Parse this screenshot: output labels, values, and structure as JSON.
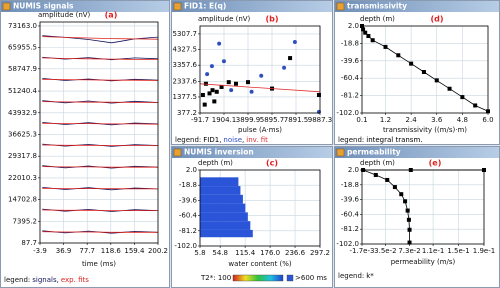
{
  "chart_data": [
    {
      "type": "line",
      "window_title": "NUMIS signals",
      "panel_label": "(a)",
      "y_label": "amplitude (nV)",
      "x_label": "time (ms)",
      "legend_title": "legend:",
      "legend_separator": ",",
      "x": [
        0,
        40,
        80,
        120,
        160,
        200
      ],
      "xlim": [
        -3.9,
        200.2
      ],
      "xticks": [
        -3.9,
        36.9,
        77.7,
        118.6,
        159.4,
        200.2
      ],
      "ylim": [
        87.7,
        74500
      ],
      "yticks": [
        87.7,
        7395.2,
        14702.8,
        22010.3,
        29317.8,
        36625.3,
        43932.9,
        51240.4,
        58747.9,
        65955.5,
        {
          "value": 73163,
          "label": "73163.0"
        }
      ],
      "grid": true,
      "series": [
        {
          "name": "signals",
          "color": "#14145a",
          "traces": [
            [
              69900,
              69300,
              68600,
              67500,
              68800,
              69400
            ],
            [
              62600,
              62000,
              62500,
              61800,
              62400,
              62100
            ],
            [
              55500,
              54800,
              55300,
              54700,
              55200,
              54900
            ],
            [
              48000,
              47300,
              47900,
              47200,
              47800,
              47400
            ],
            [
              40700,
              40000,
              40600,
              39900,
              40500,
              40200
            ],
            [
              33400,
              32700,
              33300,
              32600,
              33200,
              32900
            ],
            [
              26100,
              25400,
              26000,
              25300,
              25900,
              25600
            ],
            [
              18800,
              18100,
              18700,
              18000,
              18600,
              18300
            ],
            [
              11500,
              10800,
              11400,
              10700,
              11300,
              11000
            ],
            [
              4200,
              3500,
              4100,
              3400,
              4000,
              3700
            ]
          ]
        },
        {
          "name": "exp. fits",
          "color": "#e0201c",
          "traces": [
            [
              69600,
              69300,
              69100,
              68900,
              68800,
              68700
            ],
            [
              62400,
              62200,
              62100,
              62000,
              61900,
              61900
            ],
            [
              55200,
              55100,
              55000,
              54900,
              54900,
              54800
            ],
            [
              47700,
              47600,
              47500,
              47500,
              47400,
              47400
            ],
            [
              40400,
              40300,
              40300,
              40200,
              40200,
              40100
            ],
            [
              33100,
              33000,
              33000,
              32900,
              32900,
              32900
            ],
            [
              25800,
              25700,
              25700,
              25600,
              25600,
              25600
            ],
            [
              18500,
              18400,
              18400,
              18400,
              18300,
              18300
            ],
            [
              11200,
              11100,
              11100,
              11000,
              11000,
              11000
            ],
            [
              3900,
              3800,
              3800,
              3700,
              3700,
              3700
            ]
          ]
        }
      ]
    },
    {
      "type": "scatter",
      "window_title": "FID1: E(q)",
      "panel_label": "(b)",
      "y_label": "amplitude (nV)",
      "x_label": "pulse (A·ms)",
      "legend_title": "legend:",
      "legend_separator": ",",
      "xlim": [
        -91.7,
        9887.3
      ],
      "xticks": [
        -91.7,
        1904.1,
        3899.9,
        5895.7,
        7891.5,
        9887.3
      ],
      "ylim": [
        377.2,
        5800
      ],
      "yticks": [
        377.2,
        1377.5,
        2337.6,
        3357.6,
        4327.5,
        5307.7
      ],
      "grid": true,
      "series": [
        {
          "name": "FID1",
          "color": "#000000",
          "marker": "square",
          "x": [
            150,
            300,
            400,
            700,
            950,
            1100,
            1300,
            1700,
            2300,
            2900,
            3900,
            5900,
            7400,
            9800
          ],
          "values": [
            1500,
            900,
            2200,
            1600,
            1800,
            1100,
            1700,
            2000,
            2300,
            2200,
            2300,
            1900,
            3800,
            1500
          ]
        },
        {
          "name": "noise",
          "color": "#3050c0",
          "marker": "circle",
          "x": [
            500,
            900,
            1500,
            1900,
            2500,
            4200,
            5000,
            6900,
            7800,
            9800
          ],
          "values": [
            2800,
            3300,
            4700,
            3600,
            1800,
            1700,
            2700,
            3200,
            4800,
            450
          ]
        },
        {
          "name": "inv. fit",
          "color": "#e03030",
          "line": true,
          "x": [
            -91.7,
            9887.3
          ],
          "values": [
            2200,
            1700
          ]
        }
      ]
    },
    {
      "type": "bar",
      "window_title": "NUMIS inversion",
      "panel_label": "(c)",
      "y_label": "depth (m)",
      "x_label": "water content (%)",
      "colorbar_label": "T2*: 100",
      "colorbar_max_label": ">600 ms",
      "color": "#2a55d8",
      "xlim": [
        5.8,
        297.2
      ],
      "xticks": [
        5.8,
        54.8,
        115.4,
        {
          "value": 176,
          "label": "176.0"
        },
        236.6,
        297.2
      ],
      "ylim": [
        -102,
        2
      ],
      "yticks": [
        {
          "value": -102,
          "label": "-102.0"
        },
        -81.2,
        -60.4,
        -39.6,
        -18.8,
        {
          "value": 2,
          "label": "2.0"
        }
      ],
      "grid": true,
      "depth_top": [
        -8,
        -20,
        -32,
        -44,
        -56,
        -68,
        -80
      ],
      "depth_bottom": [
        -20,
        -32,
        -44,
        -56,
        -68,
        -80,
        -90
      ],
      "values": [
        99,
        104,
        110,
        116,
        122,
        128,
        134
      ]
    },
    {
      "type": "line",
      "window_title": "transmissivity",
      "panel_label": "(d)",
      "y_label": "depth (m)",
      "x_label": "transmissivity ((m/s)·m)",
      "legend_title": "legend:",
      "xlim": [
        0.1,
        6.0
      ],
      "xticks": [
        0.1,
        1.2,
        2.4,
        3.6,
        4.8,
        {
          "value": 6,
          "label": "6.0"
        }
      ],
      "ylim": [
        -102,
        2
      ],
      "yticks": [
        {
          "value": -102,
          "label": "-102.0"
        },
        -81.2,
        -60.4,
        -39.6,
        -18.8,
        {
          "value": 2,
          "label": "2.0"
        }
      ],
      "grid": true,
      "series": [
        {
          "name": "integral transm.",
          "color": "#000000",
          "marker": "square",
          "line": true,
          "x": [
            0.1,
            0.15,
            0.25,
            0.4,
            0.6,
            1.2,
            1.8,
            2.4,
            3.0,
            3.6,
            4.2,
            4.8,
            5.4,
            6.0
          ],
          "values": [
            2,
            -2,
            -6,
            -10,
            -15,
            -23,
            -33,
            -43,
            -53,
            -63,
            -73,
            -83,
            -93,
            -100
          ]
        }
      ]
    },
    {
      "type": "line",
      "window_title": "permeability",
      "panel_label": "(e)",
      "y_label": "depth (m)",
      "x_label": "permeability (m/s)",
      "legend_title": "legend:",
      "xlim": [
        -0.0017,
        0.19
      ],
      "xticks": [
        {
          "value": -0.0017,
          "label": "-1.7e-3"
        },
        {
          "value": 0.035,
          "label": "3.5e-2"
        },
        {
          "value": 0.073,
          "label": "7.3e-2"
        },
        {
          "value": 0.11,
          "label": "1.1e-1"
        },
        {
          "value": 0.15,
          "label": "1.5e-1"
        },
        {
          "value": 0.19,
          "label": "1.9e-1"
        }
      ],
      "ylim": [
        -102,
        2
      ],
      "yticks": [
        {
          "value": -102,
          "label": "-102.0"
        },
        -81.2,
        -60.4,
        -39.6,
        -18.8,
        {
          "value": 2,
          "label": "2.0"
        }
      ],
      "grid": true,
      "series": [
        {
          "name": "k*",
          "color": "#000000",
          "marker": "square",
          "line": true,
          "x": [
            0.19,
            0.075,
            0.0,
            0.02,
            0.038,
            0.05,
            0.06,
            0.066,
            0.07,
            0.072,
            0.073,
            0.073
          ],
          "values": [
            2,
            2,
            2,
            -5,
            -12,
            -22,
            -32,
            -42,
            -55,
            -68,
            -82,
            -100
          ]
        }
      ]
    }
  ]
}
